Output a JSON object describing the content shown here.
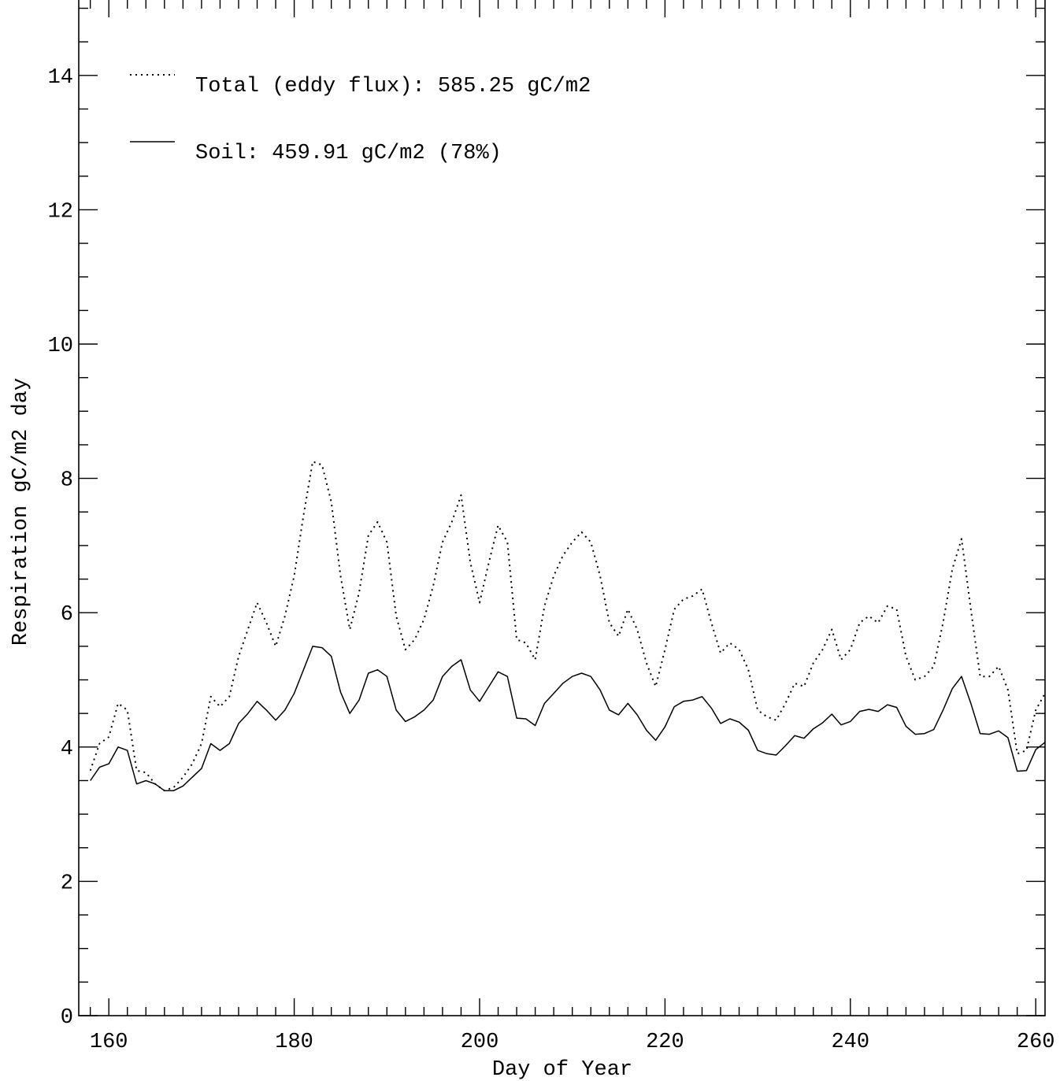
{
  "chart_data": {
    "type": "line",
    "xlabel": "Day of Year",
    "ylabel": "Respiration gC/m2 day",
    "xlim": [
      158,
      261
    ],
    "ylim": [
      0,
      14
    ],
    "x_ticks": [
      160,
      180,
      200,
      220,
      240,
      260
    ],
    "y_ticks": [
      0,
      2,
      4,
      6,
      8,
      10,
      12,
      14
    ],
    "grid": false,
    "legend_position": "top-left",
    "series": [
      {
        "name": "Total (eddy flux): 585.25 gC/m2",
        "style": "dotted",
        "color": "#000000",
        "x": [
          158,
          159,
          160,
          161,
          162,
          163,
          164,
          165,
          166,
          167,
          168,
          169,
          170,
          171,
          172,
          173,
          174,
          175,
          176,
          177,
          178,
          179,
          180,
          181,
          182,
          183,
          184,
          185,
          186,
          187,
          188,
          189,
          190,
          191,
          192,
          193,
          194,
          195,
          196,
          197,
          198,
          199,
          200,
          201,
          202,
          203,
          204,
          205,
          206,
          207,
          208,
          209,
          210,
          211,
          212,
          213,
          214,
          215,
          216,
          217,
          218,
          219,
          220,
          221,
          222,
          223,
          224,
          225,
          226,
          227,
          228,
          229,
          230,
          231,
          232,
          233,
          234,
          235,
          236,
          237,
          238,
          239,
          240,
          241,
          242,
          243,
          244,
          245,
          246,
          247,
          248,
          249,
          250,
          251,
          252,
          253,
          254,
          255,
          256,
          257,
          258,
          259,
          260,
          261
        ],
        "values": [
          3.65,
          4.05,
          4.15,
          4.65,
          4.55,
          3.65,
          3.62,
          3.45,
          3.35,
          3.4,
          3.55,
          3.75,
          4.05,
          4.75,
          4.6,
          4.75,
          5.35,
          5.75,
          6.15,
          5.85,
          5.5,
          5.95,
          6.55,
          7.45,
          8.25,
          8.2,
          7.65,
          6.55,
          5.75,
          6.3,
          7.15,
          7.35,
          7.05,
          5.95,
          5.45,
          5.6,
          5.9,
          6.4,
          7.05,
          7.35,
          7.75,
          6.75,
          6.15,
          6.75,
          7.3,
          7.05,
          5.6,
          5.55,
          5.3,
          6.1,
          6.55,
          6.85,
          7.05,
          7.2,
          7.05,
          6.55,
          5.85,
          5.65,
          6.05,
          5.75,
          5.25,
          4.9,
          5.45,
          6.05,
          6.2,
          6.25,
          6.35,
          5.85,
          5.4,
          5.55,
          5.45,
          5.15,
          4.55,
          4.45,
          4.4,
          4.65,
          4.95,
          4.9,
          5.25,
          5.45,
          5.75,
          5.3,
          5.45,
          5.85,
          5.95,
          5.85,
          6.1,
          6.05,
          5.35,
          5.0,
          5.05,
          5.2,
          5.85,
          6.65,
          7.1,
          6.05,
          5.05,
          5.05,
          5.2,
          4.85,
          3.9,
          3.95,
          4.55,
          4.8
        ]
      },
      {
        "name": "Soil: 459.91 gC/m2 (78%)",
        "style": "solid",
        "color": "#000000",
        "x": [
          158,
          159,
          160,
          161,
          162,
          163,
          164,
          165,
          166,
          167,
          168,
          169,
          170,
          171,
          172,
          173,
          174,
          175,
          176,
          177,
          178,
          179,
          180,
          181,
          182,
          183,
          184,
          185,
          186,
          187,
          188,
          189,
          190,
          191,
          192,
          193,
          194,
          195,
          196,
          197,
          198,
          199,
          200,
          201,
          202,
          203,
          204,
          205,
          206,
          207,
          208,
          209,
          210,
          211,
          212,
          213,
          214,
          215,
          216,
          217,
          218,
          219,
          220,
          221,
          222,
          223,
          224,
          225,
          226,
          227,
          228,
          229,
          230,
          231,
          232,
          233,
          234,
          235,
          236,
          237,
          238,
          239,
          240,
          241,
          242,
          243,
          244,
          245,
          246,
          247,
          248,
          249,
          250,
          251,
          252,
          253,
          254,
          255,
          256,
          257,
          258,
          259,
          260,
          261
        ],
        "values": [
          3.5,
          3.7,
          3.75,
          4.0,
          3.95,
          3.45,
          3.5,
          3.45,
          3.35,
          3.35,
          3.42,
          3.55,
          3.68,
          4.05,
          3.95,
          4.05,
          4.35,
          4.5,
          4.68,
          4.55,
          4.4,
          4.55,
          4.8,
          5.15,
          5.5,
          5.48,
          5.35,
          4.82,
          4.5,
          4.7,
          5.1,
          5.15,
          5.05,
          4.55,
          4.38,
          4.45,
          4.55,
          4.7,
          5.05,
          5.2,
          5.3,
          4.85,
          4.68,
          4.9,
          5.12,
          5.05,
          4.43,
          4.42,
          4.32,
          4.65,
          4.8,
          4.95,
          5.05,
          5.1,
          5.05,
          4.85,
          4.55,
          4.48,
          4.65,
          4.48,
          4.25,
          4.1,
          4.3,
          4.6,
          4.68,
          4.7,
          4.75,
          4.58,
          4.35,
          4.42,
          4.37,
          4.25,
          3.95,
          3.9,
          3.88,
          4.02,
          4.17,
          4.13,
          4.27,
          4.36,
          4.49,
          4.33,
          4.38,
          4.53,
          4.56,
          4.53,
          4.63,
          4.59,
          4.31,
          4.19,
          4.2,
          4.26,
          4.55,
          4.87,
          5.05,
          4.65,
          4.2,
          4.19,
          4.24,
          4.14,
          3.64,
          3.65,
          3.96,
          4.07
        ]
      }
    ]
  }
}
